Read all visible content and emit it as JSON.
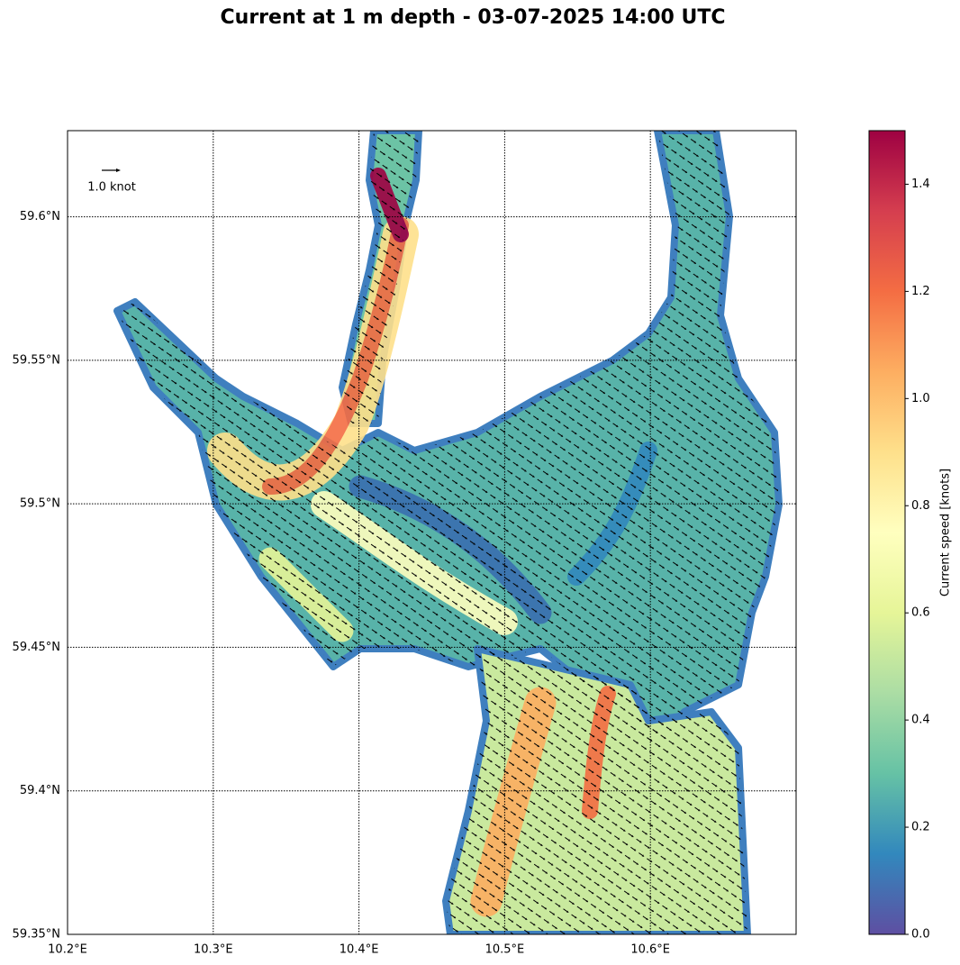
{
  "chart_data": {
    "type": "map",
    "title": "Current at 1 m depth - 03-07-2025 14:00 UTC",
    "xlim": [
      10.2,
      10.7
    ],
    "ylim": [
      59.35,
      59.63
    ],
    "xticks": [
      {
        "value": 10.2,
        "label": "10.2°E"
      },
      {
        "value": 10.3,
        "label": "10.3°E"
      },
      {
        "value": 10.4,
        "label": "10.4°E"
      },
      {
        "value": 10.5,
        "label": "10.5°E"
      },
      {
        "value": 10.6,
        "label": "10.6°E"
      }
    ],
    "yticks": [
      {
        "value": 59.35,
        "label": "59.35°N"
      },
      {
        "value": 59.4,
        "label": "59.4°N"
      },
      {
        "value": 59.45,
        "label": "59.45°N"
      },
      {
        "value": 59.5,
        "label": "59.5°N"
      },
      {
        "value": 59.55,
        "label": "59.55°N"
      },
      {
        "value": 59.6,
        "label": "59.6°N"
      }
    ],
    "grid": true,
    "quiver_key": {
      "label": "1.0 knot"
    },
    "colorbar": {
      "label": "Current speed [knots]",
      "lim": [
        0,
        1.5
      ],
      "ticks": [
        {
          "value": 0,
          "label": "0.0"
        },
        0.2,
        0.4,
        0.6,
        0.8,
        {
          "value": 1,
          "label": "1.0"
        },
        1.2,
        1.4
      ],
      "colors": [
        "#5e4fa2",
        "#3288bd",
        "#66c2a5",
        "#abdda4",
        "#e6f598",
        "#ffffbf",
        "#fee08b",
        "#fdae61",
        "#f46d43",
        "#d53e4f",
        "#9e0142"
      ]
    }
  }
}
